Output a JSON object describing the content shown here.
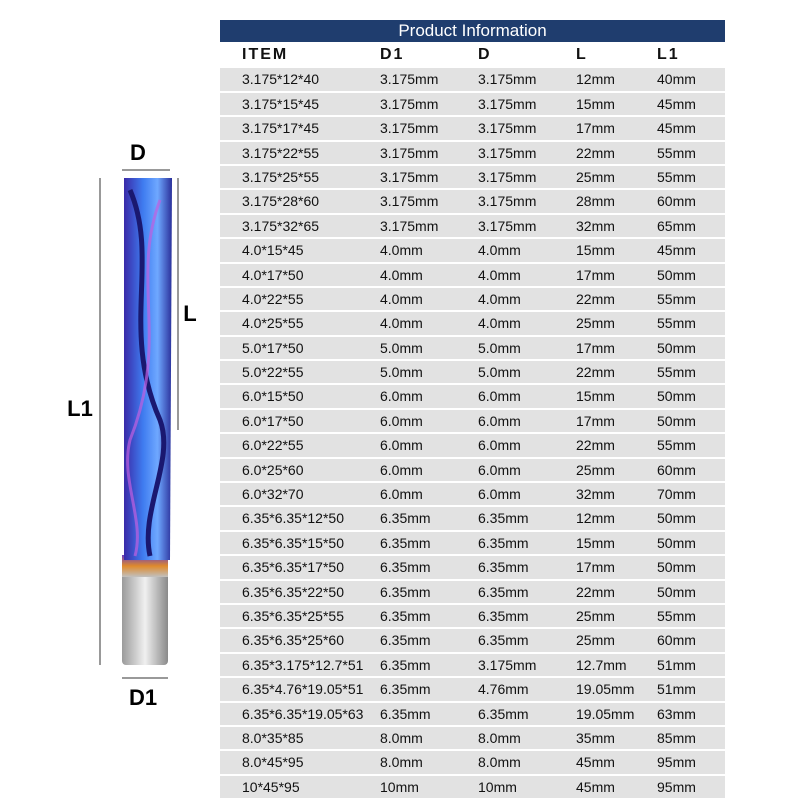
{
  "title": "Product Information",
  "columns": [
    "ITEM",
    "D1",
    "D",
    "L",
    "L1"
  ],
  "rows": [
    [
      "3.175*12*40",
      "3.175mm",
      "3.175mm",
      "12mm",
      "40mm"
    ],
    [
      "3.175*15*45",
      "3.175mm",
      "3.175mm",
      "15mm",
      "45mm"
    ],
    [
      "3.175*17*45",
      "3.175mm",
      "3.175mm",
      "17mm",
      "45mm"
    ],
    [
      "3.175*22*55",
      "3.175mm",
      "3.175mm",
      "22mm",
      "55mm"
    ],
    [
      "3.175*25*55",
      "3.175mm",
      "3.175mm",
      "25mm",
      "55mm"
    ],
    [
      "3.175*28*60",
      "3.175mm",
      "3.175mm",
      "28mm",
      "60mm"
    ],
    [
      "3.175*32*65",
      "3.175mm",
      "3.175mm",
      "32mm",
      "65mm"
    ],
    [
      "4.0*15*45",
      "4.0mm",
      "4.0mm",
      "15mm",
      "45mm"
    ],
    [
      "4.0*17*50",
      "4.0mm",
      "4.0mm",
      "17mm",
      "50mm"
    ],
    [
      "4.0*22*55",
      "4.0mm",
      "4.0mm",
      "22mm",
      "55mm"
    ],
    [
      "4.0*25*55",
      "4.0mm",
      "4.0mm",
      "25mm",
      "55mm"
    ],
    [
      "5.0*17*50",
      "5.0mm",
      "5.0mm",
      "17mm",
      "50mm"
    ],
    [
      "5.0*22*55",
      "5.0mm",
      "5.0mm",
      "22mm",
      "55mm"
    ],
    [
      "6.0*15*50",
      "6.0mm",
      "6.0mm",
      "15mm",
      "50mm"
    ],
    [
      "6.0*17*50",
      "6.0mm",
      "6.0mm",
      "17mm",
      "50mm"
    ],
    [
      "6.0*22*55",
      "6.0mm",
      "6.0mm",
      "22mm",
      "55mm"
    ],
    [
      "6.0*25*60",
      "6.0mm",
      "6.0mm",
      "25mm",
      "60mm"
    ],
    [
      "6.0*32*70",
      "6.0mm",
      "6.0mm",
      "32mm",
      "70mm"
    ],
    [
      "6.35*6.35*12*50",
      "6.35mm",
      "6.35mm",
      "12mm",
      "50mm"
    ],
    [
      "6.35*6.35*15*50",
      "6.35mm",
      "6.35mm",
      "15mm",
      "50mm"
    ],
    [
      "6.35*6.35*17*50",
      "6.35mm",
      "6.35mm",
      "17mm",
      "50mm"
    ],
    [
      "6.35*6.35*22*50",
      "6.35mm",
      "6.35mm",
      "22mm",
      "50mm"
    ],
    [
      "6.35*6.35*25*55",
      "6.35mm",
      "6.35mm",
      "25mm",
      "55mm"
    ],
    [
      "6.35*6.35*25*60",
      "6.35mm",
      "6.35mm",
      "25mm",
      "60mm"
    ],
    [
      "6.35*3.175*12.7*51",
      "6.35mm",
      "3.175mm",
      "12.7mm",
      "51mm"
    ],
    [
      "6.35*4.76*19.05*51",
      "6.35mm",
      "4.76mm",
      "19.05mm",
      "51mm"
    ],
    [
      "6.35*6.35*19.05*63",
      "6.35mm",
      "6.35mm",
      "19.05mm",
      "63mm"
    ],
    [
      "8.0*35*85",
      "8.0mm",
      "8.0mm",
      "35mm",
      "85mm"
    ],
    [
      "8.0*45*95",
      "8.0mm",
      "8.0mm",
      "45mm",
      "95mm"
    ],
    [
      "10*45*95",
      "10mm",
      "10mm",
      "45mm",
      "95mm"
    ]
  ],
  "diagram": {
    "d": "D",
    "l": "L",
    "l1": "L1",
    "d1": "D1"
  }
}
